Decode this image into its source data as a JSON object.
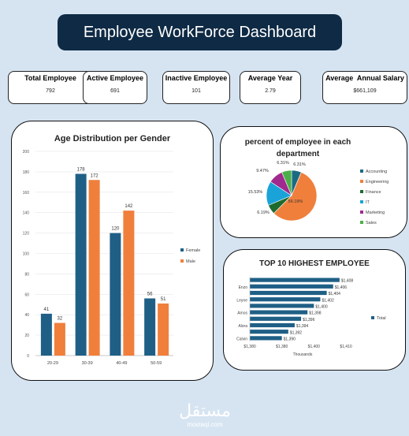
{
  "dashboard": {
    "title": "Employee WorkForce Dashboard"
  },
  "kpis": [
    {
      "label": "Total Employee",
      "value": "792"
    },
    {
      "label": "Active Employee",
      "value": "691"
    },
    {
      "label": "Inactive Employee",
      "value": "101"
    },
    {
      "label": "Average Year",
      "value": "2.79"
    },
    {
      "label": "Average  Annual Salary",
      "value": "$661,109"
    }
  ],
  "watermark": {
    "script": "مستقل",
    "latin": "mostaql.com"
  },
  "colors": {
    "background": "#d6e4f2",
    "title_bar": "#0f2a44",
    "female": "#1f5f86",
    "male": "#f07f3c"
  },
  "chart_data": [
    {
      "type": "bar",
      "title": "Age Distribution per Gender",
      "categories": [
        "20-29",
        "30-39",
        "40-49",
        "50-59"
      ],
      "series": [
        {
          "name": "Female",
          "values": [
            41,
            178,
            120,
            56
          ],
          "color": "#1f5f86"
        },
        {
          "name": "Male",
          "values": [
            32,
            172,
            142,
            51
          ],
          "color": "#f07f3c"
        }
      ],
      "ylim": [
        0,
        200
      ],
      "yticks": [
        "0",
        "20",
        "40",
        "60",
        "80",
        "100",
        "120",
        "140",
        "160",
        "180",
        "200"
      ],
      "legend": "right"
    },
    {
      "type": "pie",
      "title": "percent of employee in each department",
      "slices": [
        {
          "label": "Accounting",
          "value": 6.31,
          "text": "6.31%",
          "color": "#1a6b82"
        },
        {
          "label": "Engineering",
          "value": 56.19,
          "text": "56.19%",
          "color": "#f07f3c"
        },
        {
          "label": "Finance",
          "value": 6.19,
          "text": "6.19%",
          "color": "#1e6b2e"
        },
        {
          "label": "IT",
          "value": 15.53,
          "text": "15.53%",
          "color": "#1aa3d9"
        },
        {
          "label": "Marketing",
          "value": 9.47,
          "text": "9.47%",
          "color": "#a02a8e"
        },
        {
          "label": "Sales",
          "value": 6.31,
          "text": "6.31%",
          "color": "#4cb04a"
        }
      ],
      "legend": "right"
    },
    {
      "type": "bar",
      "orientation": "horizontal",
      "title": "TOP 10 HIGHEST EMPLOYEE",
      "categories": [
        "Calvin",
        "",
        "Alora",
        "",
        "Amos",
        "",
        "Leyne",
        "",
        "Enzo",
        ""
      ],
      "values": [
        1390,
        1392,
        1394,
        1396,
        1398,
        1400,
        1402,
        1404,
        1406,
        1408
      ],
      "value_labels": [
        "$1,390",
        "$1,392",
        "$1,394",
        "$1,396",
        "$1,398",
        "$1,400",
        "$1,402",
        "$1,404",
        "$1,406",
        "$1,408"
      ],
      "xticks": [
        "$1,380",
        "$1,380",
        "$1,400",
        "$1,410"
      ],
      "xlabel": "Thousands",
      "series_name": "Total",
      "legend": "right"
    }
  ]
}
